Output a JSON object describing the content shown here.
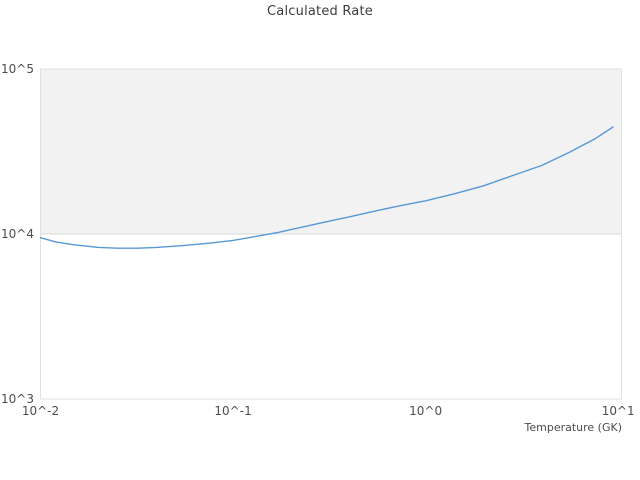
{
  "chart_data": {
    "type": "line",
    "title": "Calculated Rate",
    "xlabel": "Temperature (GK)",
    "ylabel": "",
    "x_scale": "log",
    "y_scale": "log",
    "xlim": [
      0.01,
      10.4
    ],
    "ylim": [
      1000,
      100000
    ],
    "grid": false,
    "legend": "none",
    "x_ticks": [
      {
        "label": "10^-2",
        "value": 0.01
      },
      {
        "label": "10^-1",
        "value": 0.1
      },
      {
        "label": "10^0",
        "value": 1
      },
      {
        "label": "10^1",
        "value": 10
      }
    ],
    "y_ticks": [
      {
        "label": "10^3",
        "value": 1000
      },
      {
        "label": "10^4",
        "value": 10000
      },
      {
        "label": "10^5",
        "value": 100000
      }
    ],
    "band_annotation": {
      "y_from": 10000,
      "y_to": 100000,
      "fill_color": "#f2f2f2",
      "border_color": "#dadada"
    },
    "frame_color": "#e0e0e0",
    "line_color": "#5797d7",
    "series": [
      {
        "name": "calculated-rate",
        "x": [
          0.01,
          0.012,
          0.015,
          0.02,
          0.025,
          0.032,
          0.04,
          0.055,
          0.075,
          0.1,
          0.13,
          0.17,
          0.22,
          0.3,
          0.4,
          0.55,
          0.75,
          1.0,
          1.4,
          2.0,
          2.8,
          4.0,
          5.5,
          7.5,
          9.4
        ],
        "y": [
          9500,
          8950,
          8600,
          8300,
          8200,
          8200,
          8300,
          8500,
          8800,
          9150,
          9650,
          10200,
          10900,
          11800,
          12700,
          13800,
          14900,
          15900,
          17500,
          19600,
          22500,
          26000,
          31000,
          37500,
          44500
        ]
      }
    ]
  }
}
